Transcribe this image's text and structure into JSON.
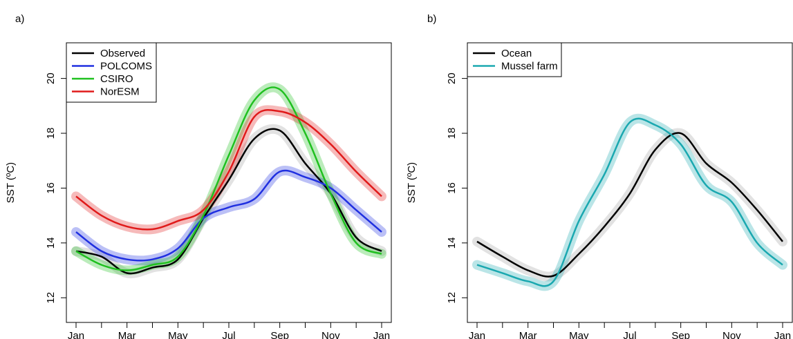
{
  "chart_data": [
    {
      "type": "line",
      "title": "a)",
      "y_label": "SST (ºC)",
      "categories": [
        "Jan",
        null,
        "Mar",
        null,
        "May",
        null,
        "Jul",
        null,
        "Sep",
        null,
        "Nov",
        null,
        "Jan"
      ],
      "ylim": [
        11.1,
        21.3
      ],
      "yticks": [
        12,
        14,
        16,
        18,
        20
      ],
      "legend": "top-left",
      "series": [
        {
          "name": "Observed",
          "color": "#000000",
          "values": [
            13.7,
            13.5,
            12.9,
            13.1,
            13.4,
            14.9,
            16.3,
            17.8,
            18.1,
            16.9,
            15.8,
            14.2,
            13.7
          ]
        },
        {
          "name": "POLCOMS",
          "color": "#1f2fe0",
          "values": [
            14.4,
            13.7,
            13.4,
            13.4,
            13.8,
            14.9,
            15.3,
            15.6,
            16.6,
            16.4,
            16.0,
            15.2,
            14.4
          ]
        },
        {
          "name": "CSIRO",
          "color": "#1fc01f",
          "values": [
            13.7,
            13.2,
            13.0,
            13.2,
            13.5,
            15.0,
            17.2,
            19.2,
            19.6,
            18.0,
            15.8,
            14.0,
            13.6
          ]
        },
        {
          "name": "NorESM",
          "color": "#e01a1a",
          "values": [
            15.7,
            15.0,
            14.6,
            14.5,
            14.8,
            15.2,
            16.6,
            18.6,
            18.8,
            18.4,
            17.6,
            16.6,
            15.7
          ]
        }
      ]
    },
    {
      "type": "line",
      "title": "b)",
      "y_label": "SST (ºC)",
      "categories": [
        "Jan",
        null,
        "Mar",
        null,
        "May",
        null,
        "Jul",
        null,
        "Sep",
        null,
        "Nov",
        null,
        "Jan"
      ],
      "ylim": [
        11.1,
        21.3
      ],
      "yticks": [
        12,
        14,
        16,
        18,
        20
      ],
      "legend": "top-left",
      "series": [
        {
          "name": "Ocean",
          "color": "#000000",
          "values": [
            14.05,
            13.5,
            13.0,
            12.8,
            13.6,
            14.6,
            15.8,
            17.4,
            18.0,
            16.9,
            16.2,
            15.2,
            14.05
          ]
        },
        {
          "name": "Mussel farm",
          "color": "#1aa8b0",
          "values": [
            13.2,
            12.9,
            12.6,
            12.6,
            14.8,
            16.5,
            18.4,
            18.3,
            17.6,
            16.1,
            15.5,
            14.0,
            13.2
          ]
        }
      ]
    }
  ]
}
